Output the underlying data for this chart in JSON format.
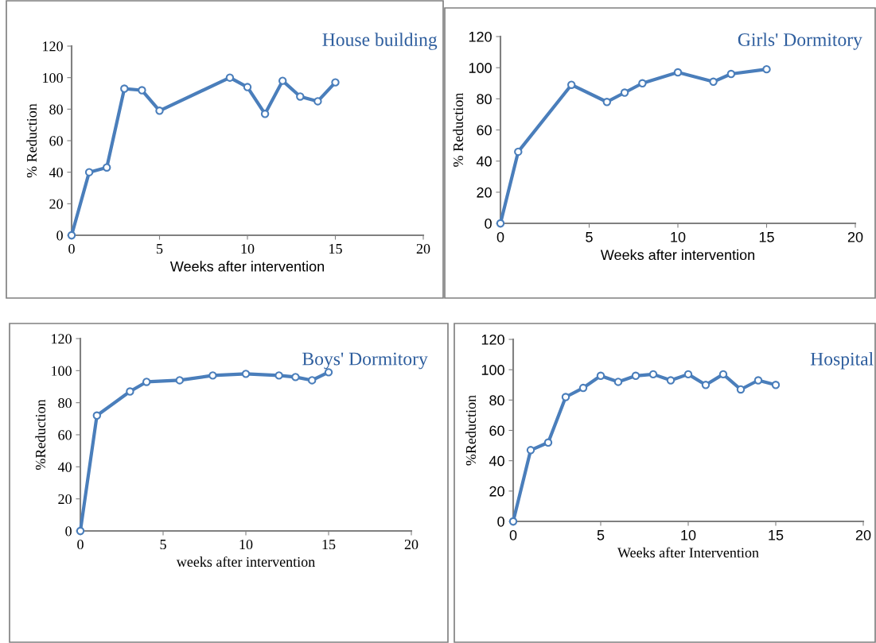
{
  "chart_data": [
    {
      "type": "line",
      "title": "House building",
      "xlabel": "Weeks after intervention",
      "ylabel": "% Reduction",
      "x": [
        0,
        1,
        2,
        3,
        4,
        5,
        9,
        10,
        11,
        12,
        13,
        14,
        15
      ],
      "series": [
        {
          "color": "#4a7ebb",
          "values": [
            0,
            40,
            43,
            93,
            92,
            79,
            100,
            94,
            77,
            98,
            88,
            85,
            97
          ]
        }
      ],
      "xlim": [
        0,
        20
      ],
      "xticks": [
        0,
        5,
        10,
        15,
        20
      ],
      "ylim": [
        0,
        120
      ],
      "yticks": [
        0,
        20,
        40,
        60,
        80,
        100,
        120
      ],
      "marker": "circle",
      "line_style": "solid",
      "grid": false,
      "legend": false
    },
    {
      "type": "line",
      "title": "Girls' Dormitory",
      "xlabel": "Weeks after intervention",
      "ylabel": "% Reduction",
      "x": [
        0,
        1,
        4,
        6,
        7,
        8,
        10,
        12,
        13,
        15
      ],
      "series": [
        {
          "color": "#4a7ebb",
          "values": [
            0,
            46,
            89,
            78,
            84,
            90,
            97,
            91,
            96,
            99
          ]
        }
      ],
      "xlim": [
        0,
        20
      ],
      "xticks": [
        0,
        5,
        10,
        15,
        20
      ],
      "ylim": [
        0,
        120
      ],
      "yticks": [
        0,
        20,
        40,
        60,
        80,
        100,
        120
      ],
      "marker": "circle",
      "line_style": "solid",
      "grid": false,
      "legend": false
    },
    {
      "type": "line",
      "title": "Boys' Dormitory",
      "xlabel": "weeks after intervention",
      "ylabel": "%Reduction",
      "x": [
        0,
        1,
        3,
        4,
        6,
        8,
        10,
        12,
        13,
        14,
        15
      ],
      "series": [
        {
          "color": "#4a7ebb",
          "values": [
            0,
            72,
            87,
            93,
            94,
            97,
            98,
            97,
            96,
            94,
            99
          ]
        }
      ],
      "xlim": [
        0,
        20
      ],
      "xticks": [
        0,
        5,
        10,
        15,
        20
      ],
      "ylim": [
        0,
        120
      ],
      "yticks": [
        0,
        20,
        40,
        60,
        80,
        100,
        120
      ],
      "marker": "circle",
      "line_style": "solid",
      "grid": false,
      "legend": false
    },
    {
      "type": "line",
      "title": "Hospital",
      "xlabel": "Weeks after Intervention",
      "ylabel": "%Reduction",
      "x": [
        0,
        1,
        2,
        3,
        4,
        5,
        6,
        7,
        8,
        9,
        10,
        11,
        12,
        13,
        14,
        15
      ],
      "series": [
        {
          "color": "#4a7ebb",
          "values": [
            0,
            47,
            52,
            82,
            88,
            96,
            92,
            96,
            97,
            93,
            97,
            90,
            97,
            87,
            93,
            90
          ]
        }
      ],
      "xlim": [
        0,
        20
      ],
      "xticks": [
        0,
        5,
        10,
        15,
        20
      ],
      "ylim": [
        0,
        120
      ],
      "yticks": [
        0,
        20,
        40,
        60,
        80,
        100,
        120
      ],
      "marker": "circle",
      "line_style": "solid",
      "grid": false,
      "legend": false
    }
  ]
}
